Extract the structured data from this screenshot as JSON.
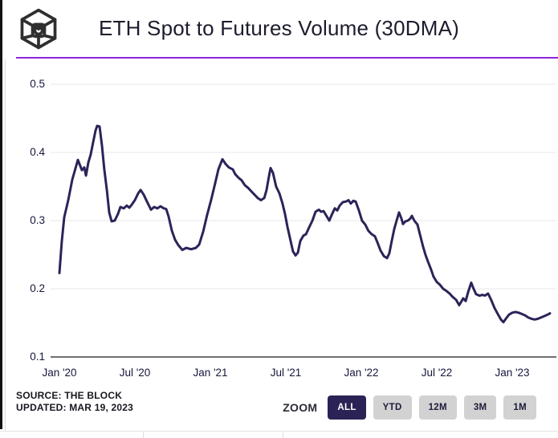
{
  "header": {
    "title": "ETH Spot to Futures Volume (30DMA)",
    "logo_icon": "the-block-cube-logo",
    "accent_color": "#8f24dd"
  },
  "footer": {
    "source": "SOURCE: THE BLOCK",
    "updated": "UPDATED: MAR 19, 2023",
    "zoom_label": "ZOOM",
    "zoom_buttons": [
      {
        "label": "ALL",
        "active": true
      },
      {
        "label": "YTD",
        "active": false
      },
      {
        "label": "12M",
        "active": false
      },
      {
        "label": "3M",
        "active": false
      },
      {
        "label": "1M",
        "active": false
      }
    ],
    "active_button_color": "#2b2355",
    "inactive_button_color": "#d2d2d2"
  },
  "chart_data": {
    "type": "line",
    "title": "ETH Spot to Futures Volume (30DMA)",
    "series_name": "ETH spot to futures volume (30-day moving average)",
    "line_color": "#2b2459",
    "grid": true,
    "legend": "none",
    "ylim": [
      0.1,
      0.5
    ],
    "y_ticks": [
      0.5,
      0.4,
      0.3,
      0.2,
      0.1
    ],
    "x_unit": "months since 2020-01",
    "x_ticks": [
      {
        "m": 0,
        "label": "Jan '20"
      },
      {
        "m": 6,
        "label": "Jul '20"
      },
      {
        "m": 12,
        "label": "Jan '21"
      },
      {
        "m": 18,
        "label": "Jul '21"
      },
      {
        "m": 24,
        "label": "Jan '22"
      },
      {
        "m": 30,
        "label": "Jul '22"
      },
      {
        "m": 36,
        "label": "Jan '23"
      }
    ],
    "points": [
      [
        0,
        0.223
      ],
      [
        0.19,
        0.27
      ],
      [
        0.38,
        0.305
      ],
      [
        0.7,
        0.33
      ],
      [
        1.02,
        0.36
      ],
      [
        1.47,
        0.389
      ],
      [
        1.79,
        0.374
      ],
      [
        1.98,
        0.378
      ],
      [
        2.11,
        0.366
      ],
      [
        2.3,
        0.385
      ],
      [
        2.49,
        0.397
      ],
      [
        2.68,
        0.415
      ],
      [
        2.87,
        0.432
      ],
      [
        3,
        0.439
      ],
      [
        3.19,
        0.438
      ],
      [
        3.38,
        0.41
      ],
      [
        3.57,
        0.375
      ],
      [
        3.77,
        0.345
      ],
      [
        3.96,
        0.312
      ],
      [
        4.15,
        0.299
      ],
      [
        4.4,
        0.3
      ],
      [
        4.66,
        0.31
      ],
      [
        4.85,
        0.32
      ],
      [
        5.11,
        0.318
      ],
      [
        5.36,
        0.322
      ],
      [
        5.55,
        0.319
      ],
      [
        5.74,
        0.323
      ],
      [
        6,
        0.33
      ],
      [
        6.26,
        0.34
      ],
      [
        6.45,
        0.345
      ],
      [
        6.7,
        0.338
      ],
      [
        6.96,
        0.328
      ],
      [
        7.28,
        0.316
      ],
      [
        7.53,
        0.32
      ],
      [
        7.79,
        0.318
      ],
      [
        8.04,
        0.321
      ],
      [
        8.3,
        0.318
      ],
      [
        8.49,
        0.317
      ],
      [
        8.68,
        0.306
      ],
      [
        8.94,
        0.285
      ],
      [
        9.19,
        0.272
      ],
      [
        9.45,
        0.264
      ],
      [
        9.77,
        0.257
      ],
      [
        10.08,
        0.26
      ],
      [
        10.47,
        0.258
      ],
      [
        10.85,
        0.26
      ],
      [
        11.11,
        0.265
      ],
      [
        11.43,
        0.284
      ],
      [
        11.74,
        0.308
      ],
      [
        12.06,
        0.33
      ],
      [
        12.38,
        0.355
      ],
      [
        12.64,
        0.375
      ],
      [
        12.96,
        0.39
      ],
      [
        13.21,
        0.383
      ],
      [
        13.47,
        0.378
      ],
      [
        13.79,
        0.375
      ],
      [
        13.98,
        0.368
      ],
      [
        14.23,
        0.363
      ],
      [
        14.49,
        0.359
      ],
      [
        14.74,
        0.352
      ],
      [
        15,
        0.348
      ],
      [
        15.25,
        0.343
      ],
      [
        15.51,
        0.338
      ],
      [
        15.77,
        0.333
      ],
      [
        16.02,
        0.33
      ],
      [
        16.28,
        0.333
      ],
      [
        16.47,
        0.345
      ],
      [
        16.66,
        0.365
      ],
      [
        16.79,
        0.377
      ],
      [
        16.98,
        0.37
      ],
      [
        17.23,
        0.35
      ],
      [
        17.49,
        0.34
      ],
      [
        17.74,
        0.325
      ],
      [
        17.94,
        0.309
      ],
      [
        18.13,
        0.291
      ],
      [
        18.38,
        0.27
      ],
      [
        18.57,
        0.255
      ],
      [
        18.77,
        0.249
      ],
      [
        18.96,
        0.253
      ],
      [
        19.15,
        0.27
      ],
      [
        19.4,
        0.278
      ],
      [
        19.6,
        0.28
      ],
      [
        19.85,
        0.29
      ],
      [
        20.11,
        0.3
      ],
      [
        20.36,
        0.313
      ],
      [
        20.62,
        0.316
      ],
      [
        20.81,
        0.313
      ],
      [
        21,
        0.314
      ],
      [
        21.26,
        0.306
      ],
      [
        21.45,
        0.3
      ],
      [
        21.64,
        0.308
      ],
      [
        21.89,
        0.318
      ],
      [
        22.09,
        0.315
      ],
      [
        22.28,
        0.322
      ],
      [
        22.53,
        0.327
      ],
      [
        22.79,
        0.328
      ],
      [
        22.98,
        0.33
      ],
      [
        23.17,
        0.325
      ],
      [
        23.36,
        0.329
      ],
      [
        23.55,
        0.328
      ],
      [
        23.81,
        0.315
      ],
      [
        24.06,
        0.3
      ],
      [
        24.32,
        0.294
      ],
      [
        24.57,
        0.285
      ],
      [
        24.83,
        0.28
      ],
      [
        25.08,
        0.277
      ],
      [
        25.28,
        0.268
      ],
      [
        25.53,
        0.256
      ],
      [
        25.79,
        0.248
      ],
      [
        26.04,
        0.245
      ],
      [
        26.23,
        0.252
      ],
      [
        26.42,
        0.27
      ],
      [
        26.62,
        0.288
      ],
      [
        26.81,
        0.3
      ],
      [
        27,
        0.312
      ],
      [
        27.19,
        0.303
      ],
      [
        27.32,
        0.295
      ],
      [
        27.51,
        0.299
      ],
      [
        27.7,
        0.3
      ],
      [
        27.89,
        0.303
      ],
      [
        28.02,
        0.307
      ],
      [
        28.21,
        0.3
      ],
      [
        28.47,
        0.294
      ],
      [
        28.66,
        0.28
      ],
      [
        28.91,
        0.262
      ],
      [
        29.1,
        0.25
      ],
      [
        29.3,
        0.24
      ],
      [
        29.55,
        0.228
      ],
      [
        29.74,
        0.218
      ],
      [
        30,
        0.21
      ],
      [
        30.25,
        0.206
      ],
      [
        30.51,
        0.2
      ],
      [
        30.76,
        0.197
      ],
      [
        31.02,
        0.193
      ],
      [
        31.27,
        0.188
      ],
      [
        31.53,
        0.184
      ],
      [
        31.78,
        0.176
      ],
      [
        31.98,
        0.182
      ],
      [
        32.1,
        0.186
      ],
      [
        32.3,
        0.182
      ],
      [
        32.49,
        0.195
      ],
      [
        32.74,
        0.209
      ],
      [
        32.93,
        0.2
      ],
      [
        33.13,
        0.192
      ],
      [
        33.38,
        0.19
      ],
      [
        33.64,
        0.191
      ],
      [
        33.83,
        0.19
      ],
      [
        34.08,
        0.193
      ],
      [
        34.34,
        0.183
      ],
      [
        34.59,
        0.172
      ],
      [
        34.85,
        0.163
      ],
      [
        35.1,
        0.155
      ],
      [
        35.3,
        0.151
      ],
      [
        35.49,
        0.156
      ],
      [
        35.74,
        0.162
      ],
      [
        36,
        0.165
      ],
      [
        36.25,
        0.166
      ],
      [
        36.51,
        0.165
      ],
      [
        36.76,
        0.163
      ],
      [
        37.02,
        0.161
      ],
      [
        37.27,
        0.158
      ],
      [
        37.53,
        0.156
      ],
      [
        37.78,
        0.155
      ],
      [
        38.04,
        0.156
      ],
      [
        38.29,
        0.158
      ],
      [
        38.55,
        0.16
      ],
      [
        38.81,
        0.162
      ],
      [
        39,
        0.164
      ]
    ]
  }
}
